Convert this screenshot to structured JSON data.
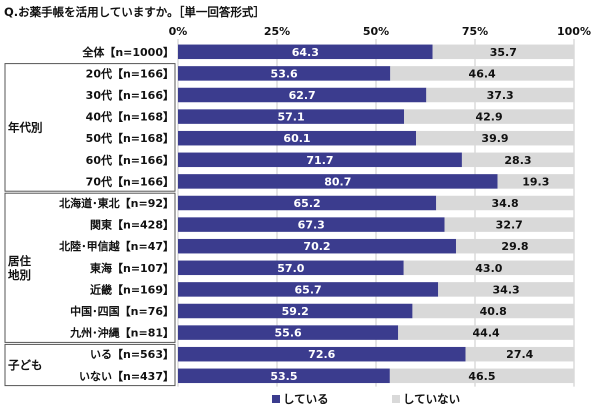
{
  "chart_data": {
    "type": "bar",
    "stacked": true,
    "orientation": "horizontal",
    "title": "Q.お薬手帳を活用していますか。［単一回答形式］",
    "xlim": [
      0,
      100
    ],
    "x_ticks": [
      "0%",
      "25%",
      "50%",
      "75%",
      "100%"
    ],
    "grid": true,
    "legend_position": "bottom",
    "colors": {
      "している": "#3b3c8e",
      "していない": "#d9d9d9",
      "group_border": "#555555"
    },
    "series": [
      {
        "name": "している",
        "values": [
          64.3,
          53.6,
          62.7,
          57.1,
          60.1,
          71.7,
          80.7,
          65.2,
          67.3,
          70.2,
          57.0,
          65.7,
          59.2,
          55.6,
          72.6,
          53.5
        ]
      },
      {
        "name": "していない",
        "values": [
          35.7,
          46.4,
          37.3,
          42.9,
          39.9,
          28.3,
          19.3,
          34.8,
          32.7,
          29.8,
          43.0,
          34.3,
          40.8,
          44.4,
          27.4,
          46.5
        ]
      }
    ],
    "categories": [
      "全体【n=1000】",
      "20代【n=166】",
      "30代【n=166】",
      "40代【n=168】",
      "50代【n=168】",
      "60代【n=166】",
      "70代【n=166】",
      "北海道･東北【n=92】",
      "関東【n=428】",
      "北陸･甲信越【n=47】",
      "東海【n=107】",
      "近畿【n=169】",
      "中国･四国【n=76】",
      "九州･沖縄【n=81】",
      "いる【n=563】",
      "いない【n=437】"
    ],
    "groups": [
      {
        "label": "",
        "start": 0,
        "end": 0
      },
      {
        "label": "年代別",
        "start": 1,
        "end": 6
      },
      {
        "label": "居住地別",
        "start": 7,
        "end": 13
      },
      {
        "label": "子ども",
        "start": 14,
        "end": 15
      }
    ]
  }
}
